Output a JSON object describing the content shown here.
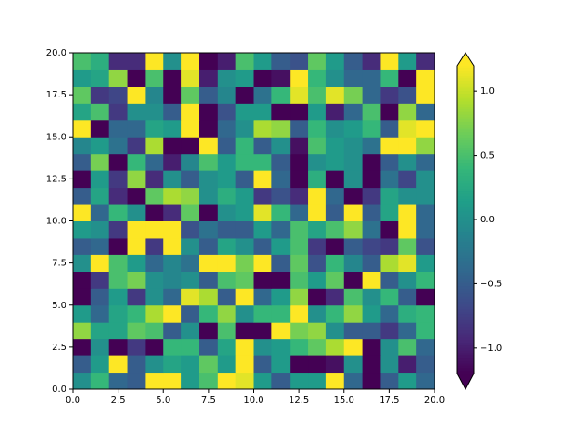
{
  "chart_data": {
    "type": "heatmap",
    "cmap": "viridis",
    "xlim": [
      0,
      20
    ],
    "ylim": [
      0,
      20
    ],
    "xticks": [
      {
        "value": 0,
        "label": "0.0"
      },
      {
        "value": 2.5,
        "label": "2.5"
      },
      {
        "value": 5,
        "label": "5.0"
      },
      {
        "value": 7.5,
        "label": "7.5"
      },
      {
        "value": 10,
        "label": "10.0"
      },
      {
        "value": 12.5,
        "label": "12.5"
      },
      {
        "value": 15,
        "label": "15.0"
      },
      {
        "value": 17.5,
        "label": "17.5"
      },
      {
        "value": 20,
        "label": "20.0"
      }
    ],
    "yticks": [
      {
        "value": 0,
        "label": "0.0"
      },
      {
        "value": 2.5,
        "label": "2.5"
      },
      {
        "value": 5,
        "label": "5.0"
      },
      {
        "value": 7.5,
        "label": "7.5"
      },
      {
        "value": 10,
        "label": "10.0"
      },
      {
        "value": 12.5,
        "label": "12.5"
      },
      {
        "value": 15,
        "label": "15.0"
      },
      {
        "value": 17.5,
        "label": "17.5"
      },
      {
        "value": 20,
        "label": "20.0"
      }
    ],
    "clim": [
      -1.2,
      1.2
    ],
    "colorbar_extend": "both",
    "cticks": [
      {
        "value": -1,
        "label": "−1.0"
      },
      {
        "value": -0.5,
        "label": "−0.5"
      },
      {
        "value": 0,
        "label": "0.0"
      },
      {
        "value": 0.5,
        "label": "0.5"
      },
      {
        "value": 1,
        "label": "1.0"
      }
    ],
    "z": [
      [
        0.0,
        0.4,
        -0.4,
        -0.5,
        1.2,
        1.2,
        0.1,
        0.5,
        1.2,
        1.1,
        0.1,
        -0.5,
        0.1,
        0.1,
        1.2,
        -0.4,
        -1.2,
        -0.5,
        0.1,
        -0.4
      ],
      [
        -0.5,
        0.1,
        1.2,
        -0.5,
        0.0,
        0.2,
        0.1,
        0.6,
        0.1,
        1.2,
        -0.5,
        0.1,
        -1.2,
        -1.2,
        -1.1,
        0.0,
        -1.2,
        0.0,
        -1.0,
        -0.5
      ],
      [
        -1.2,
        0.0,
        -1.2,
        -0.8,
        -1.2,
        0.4,
        0.4,
        -0.5,
        0.2,
        1.2,
        0.0,
        0.1,
        0.4,
        0.6,
        0.9,
        1.2,
        -1.2,
        0.0,
        0.5,
        -0.4
      ],
      [
        0.8,
        0.2,
        0.2,
        0.6,
        0.5,
        -0.5,
        0.0,
        -1.2,
        0.5,
        -1.2,
        -1.2,
        1.2,
        0.7,
        0.8,
        0.0,
        -0.5,
        -0.5,
        -0.8,
        -0.4,
        0.4
      ],
      [
        0.1,
        -0.4,
        0.2,
        0.4,
        0.9,
        1.2,
        -0.5,
        0.4,
        0.8,
        0.0,
        0.4,
        0.4,
        1.2,
        0.0,
        0.4,
        0.8,
        0.1,
        -0.4,
        0.3,
        0.4
      ],
      [
        -1.2,
        -0.5,
        0.1,
        -0.8,
        0.0,
        -0.4,
        1.1,
        0.9,
        -0.5,
        1.2,
        -0.4,
        0.1,
        0.8,
        -1.2,
        -0.9,
        0.5,
        0.0,
        0.4,
        -0.5,
        -1.2
      ],
      [
        -1.2,
        -0.8,
        0.5,
        0.7,
        0.0,
        -0.1,
        0.0,
        -0.5,
        0.5,
        0.6,
        -1.2,
        -1.2,
        0.5,
        0.1,
        0.6,
        -1.2,
        1.2,
        -0.5,
        0.0,
        0.4
      ],
      [
        0.0,
        1.2,
        0.5,
        0.1,
        -0.4,
        -0.1,
        -0.3,
        1.2,
        1.2,
        0.7,
        1.2,
        -0.5,
        0.6,
        -0.6,
        0.4,
        -0.1,
        -0.5,
        0.9,
        1.1,
        0.1
      ],
      [
        -0.5,
        -0.4,
        -1.2,
        1.2,
        -0.8,
        1.2,
        0.0,
        -0.5,
        0.2,
        0.0,
        -0.5,
        0.1,
        0.5,
        -0.8,
        -1.2,
        -0.5,
        -0.7,
        -0.8,
        0.6,
        -0.6
      ],
      [
        0.1,
        0.0,
        -0.8,
        1.2,
        1.2,
        1.2,
        -0.6,
        -0.3,
        -0.5,
        -0.5,
        0.1,
        -0.4,
        0.5,
        0.2,
        0.5,
        0.8,
        -0.3,
        -1.2,
        1.2,
        -0.4
      ],
      [
        1.2,
        -0.4,
        0.4,
        0.0,
        -1.2,
        -0.9,
        0.6,
        -1.2,
        0.0,
        0.1,
        1.1,
        0.4,
        -0.4,
        1.2,
        -0.5,
        1.2,
        -0.5,
        0.2,
        1.2,
        -0.4
      ],
      [
        -0.5,
        0.2,
        -0.9,
        -1.2,
        0.6,
        0.9,
        0.8,
        0.0,
        0.3,
        0.1,
        -0.8,
        -0.6,
        -0.9,
        1.2,
        -0.4,
        -1.2,
        -0.8,
        0.2,
        0.0,
        0.0
      ],
      [
        -1.2,
        0.1,
        -0.8,
        0.8,
        -0.9,
        0.0,
        -0.5,
        0.0,
        0.1,
        -0.5,
        1.2,
        -0.4,
        -1.2,
        0.3,
        -1.2,
        0.0,
        -1.2,
        -0.3,
        -0.7,
        0.0
      ],
      [
        -0.5,
        0.7,
        -1.2,
        0.4,
        -0.4,
        -1.0,
        -0.1,
        0.5,
        0.1,
        0.4,
        0.4,
        -0.5,
        -1.2,
        0.0,
        0.1,
        0.0,
        -1.2,
        -0.5,
        0.0,
        -0.4
      ],
      [
        -0.1,
        0.1,
        -0.3,
        -0.8,
        0.9,
        -1.2,
        -1.2,
        1.2,
        -0.5,
        0.4,
        -0.5,
        0.0,
        -1.1,
        0.5,
        0.1,
        0.0,
        -0.3,
        1.2,
        1.2,
        0.8
      ],
      [
        1.2,
        -1.2,
        -0.4,
        -0.4,
        0.2,
        0.1,
        1.2,
        -1.2,
        -0.4,
        0.0,
        0.9,
        0.8,
        -0.5,
        0.4,
        0.0,
        0.1,
        0.4,
        -0.5,
        1.1,
        1.2
      ],
      [
        0.2,
        0.5,
        -0.8,
        0.0,
        0.0,
        -0.5,
        1.2,
        -1.2,
        -0.6,
        0.1,
        0.1,
        -1.2,
        -1.2,
        0.1,
        -1.0,
        -0.4,
        0.5,
        -1.2,
        0.8,
        -0.4
      ],
      [
        0.6,
        -0.8,
        -0.7,
        1.2,
        -0.1,
        -1.2,
        0.6,
        -0.5,
        -0.1,
        -1.2,
        -0.3,
        0.4,
        1.1,
        0.5,
        1.1,
        0.7,
        -0.4,
        -0.8,
        -0.6,
        1.2
      ],
      [
        0.1,
        0.2,
        0.8,
        -1.2,
        0.5,
        -1.2,
        1.1,
        -1.0,
        0.0,
        0.1,
        -1.2,
        -1.1,
        1.2,
        0.4,
        0.0,
        -0.4,
        -0.4,
        0.4,
        -1.2,
        1.2
      ],
      [
        0.5,
        0.3,
        -0.9,
        -0.9,
        1.2,
        0.0,
        1.2,
        -1.2,
        -1.0,
        0.5,
        0.1,
        -0.5,
        -0.6,
        0.6,
        0.1,
        -0.5,
        -0.9,
        1.2,
        0.1,
        -0.9
      ]
    ]
  }
}
